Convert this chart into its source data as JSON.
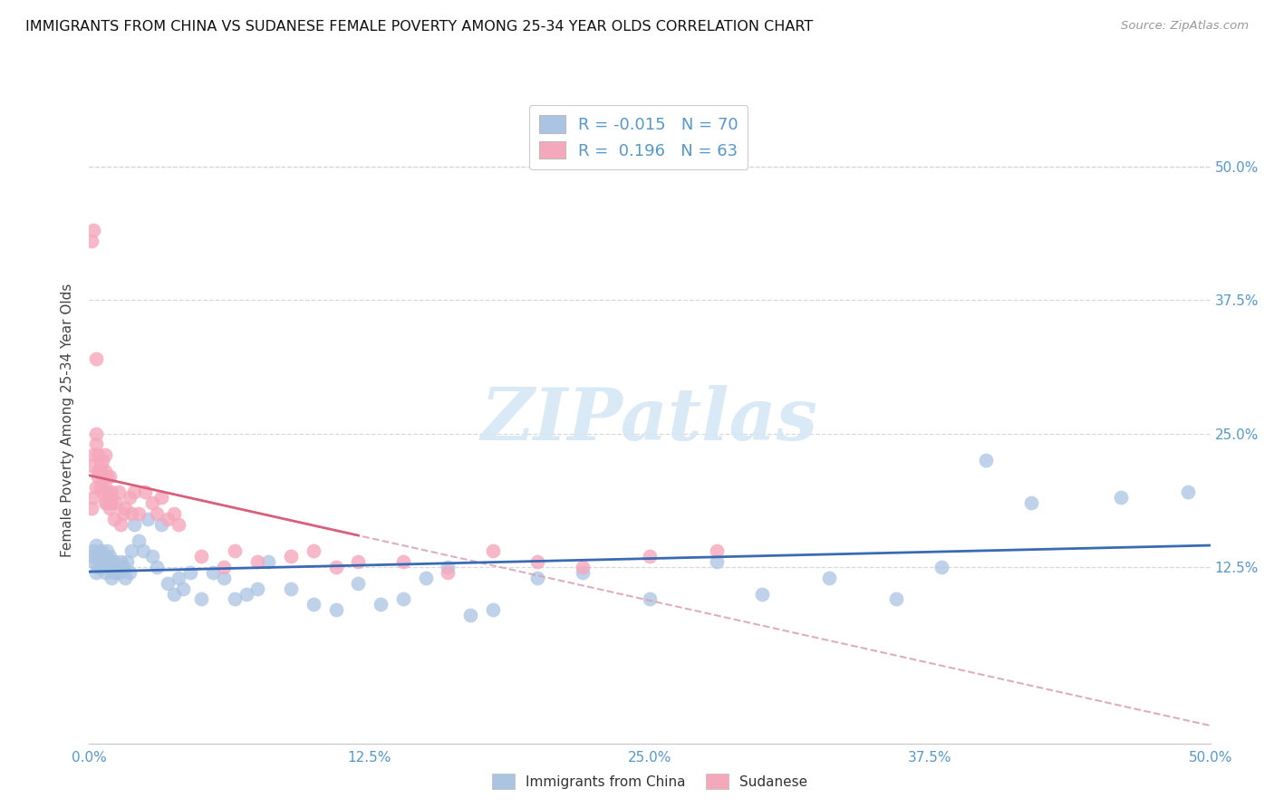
{
  "title": "IMMIGRANTS FROM CHINA VS SUDANESE FEMALE POVERTY AMONG 25-34 YEAR OLDS CORRELATION CHART",
  "source": "Source: ZipAtlas.com",
  "ylabel": "Female Poverty Among 25-34 Year Olds",
  "xlim": [
    0.0,
    0.5
  ],
  "ylim": [
    -0.04,
    0.565
  ],
  "xtick_values": [
    0.0,
    0.125,
    0.25,
    0.375,
    0.5
  ],
  "xtick_labels": [
    "0.0%",
    "12.5%",
    "25.0%",
    "37.5%",
    "50.0%"
  ],
  "ytick_values": [
    0.125,
    0.25,
    0.375,
    0.5
  ],
  "ytick_labels": [
    "12.5%",
    "25.0%",
    "37.5%",
    "50.0%"
  ],
  "china_R": -0.015,
  "china_N": 70,
  "sudanese_R": 0.196,
  "sudanese_N": 63,
  "china_color": "#aac4e2",
  "sudanese_color": "#f5a8bc",
  "china_line_color": "#3b6ab5",
  "sudanese_line_color": "#d9607a",
  "dashed_line_color": "#d9a0b0",
  "watermark_color": "#d5e8f5",
  "tick_color": "#5599cc",
  "grid_color": "#d8d8d8",
  "china_scatter_x": [
    0.001,
    0.002,
    0.002,
    0.003,
    0.003,
    0.004,
    0.004,
    0.005,
    0.005,
    0.006,
    0.006,
    0.007,
    0.007,
    0.008,
    0.008,
    0.009,
    0.009,
    0.01,
    0.01,
    0.011,
    0.011,
    0.012,
    0.013,
    0.014,
    0.015,
    0.016,
    0.017,
    0.018,
    0.019,
    0.02,
    0.022,
    0.024,
    0.026,
    0.028,
    0.03,
    0.032,
    0.035,
    0.038,
    0.04,
    0.042,
    0.045,
    0.05,
    0.055,
    0.06,
    0.065,
    0.07,
    0.075,
    0.08,
    0.09,
    0.1,
    0.11,
    0.12,
    0.13,
    0.14,
    0.15,
    0.16,
    0.17,
    0.18,
    0.2,
    0.22,
    0.25,
    0.28,
    0.3,
    0.33,
    0.36,
    0.38,
    0.4,
    0.42,
    0.46,
    0.49
  ],
  "china_scatter_y": [
    0.135,
    0.14,
    0.13,
    0.145,
    0.12,
    0.135,
    0.125,
    0.13,
    0.14,
    0.125,
    0.13,
    0.135,
    0.12,
    0.13,
    0.14,
    0.125,
    0.135,
    0.13,
    0.115,
    0.12,
    0.13,
    0.125,
    0.12,
    0.13,
    0.125,
    0.115,
    0.13,
    0.12,
    0.14,
    0.165,
    0.15,
    0.14,
    0.17,
    0.135,
    0.125,
    0.165,
    0.11,
    0.1,
    0.115,
    0.105,
    0.12,
    0.095,
    0.12,
    0.115,
    0.095,
    0.1,
    0.105,
    0.13,
    0.105,
    0.09,
    0.085,
    0.11,
    0.09,
    0.095,
    0.115,
    0.125,
    0.08,
    0.085,
    0.115,
    0.12,
    0.095,
    0.13,
    0.1,
    0.115,
    0.095,
    0.125,
    0.225,
    0.185,
    0.19,
    0.195
  ],
  "sudanese_scatter_x": [
    0.001,
    0.001,
    0.002,
    0.002,
    0.003,
    0.003,
    0.003,
    0.004,
    0.004,
    0.004,
    0.005,
    0.005,
    0.005,
    0.006,
    0.006,
    0.006,
    0.007,
    0.007,
    0.007,
    0.007,
    0.008,
    0.008,
    0.008,
    0.009,
    0.009,
    0.009,
    0.01,
    0.01,
    0.011,
    0.012,
    0.013,
    0.014,
    0.015,
    0.016,
    0.018,
    0.019,
    0.02,
    0.022,
    0.025,
    0.028,
    0.03,
    0.032,
    0.035,
    0.038,
    0.04,
    0.05,
    0.06,
    0.065,
    0.075,
    0.09,
    0.1,
    0.11,
    0.12,
    0.14,
    0.16,
    0.18,
    0.2,
    0.22,
    0.25,
    0.28,
    0.001,
    0.002,
    0.003
  ],
  "sudanese_scatter_y": [
    0.18,
    0.22,
    0.19,
    0.23,
    0.2,
    0.24,
    0.25,
    0.21,
    0.23,
    0.215,
    0.22,
    0.2,
    0.215,
    0.195,
    0.21,
    0.225,
    0.185,
    0.2,
    0.215,
    0.23,
    0.195,
    0.185,
    0.21,
    0.18,
    0.19,
    0.21,
    0.185,
    0.195,
    0.17,
    0.185,
    0.195,
    0.165,
    0.175,
    0.18,
    0.19,
    0.175,
    0.195,
    0.175,
    0.195,
    0.185,
    0.175,
    0.19,
    0.17,
    0.175,
    0.165,
    0.135,
    0.125,
    0.14,
    0.13,
    0.135,
    0.14,
    0.125,
    0.13,
    0.13,
    0.12,
    0.14,
    0.13,
    0.125,
    0.135,
    0.14,
    0.43,
    0.44,
    0.32
  ]
}
